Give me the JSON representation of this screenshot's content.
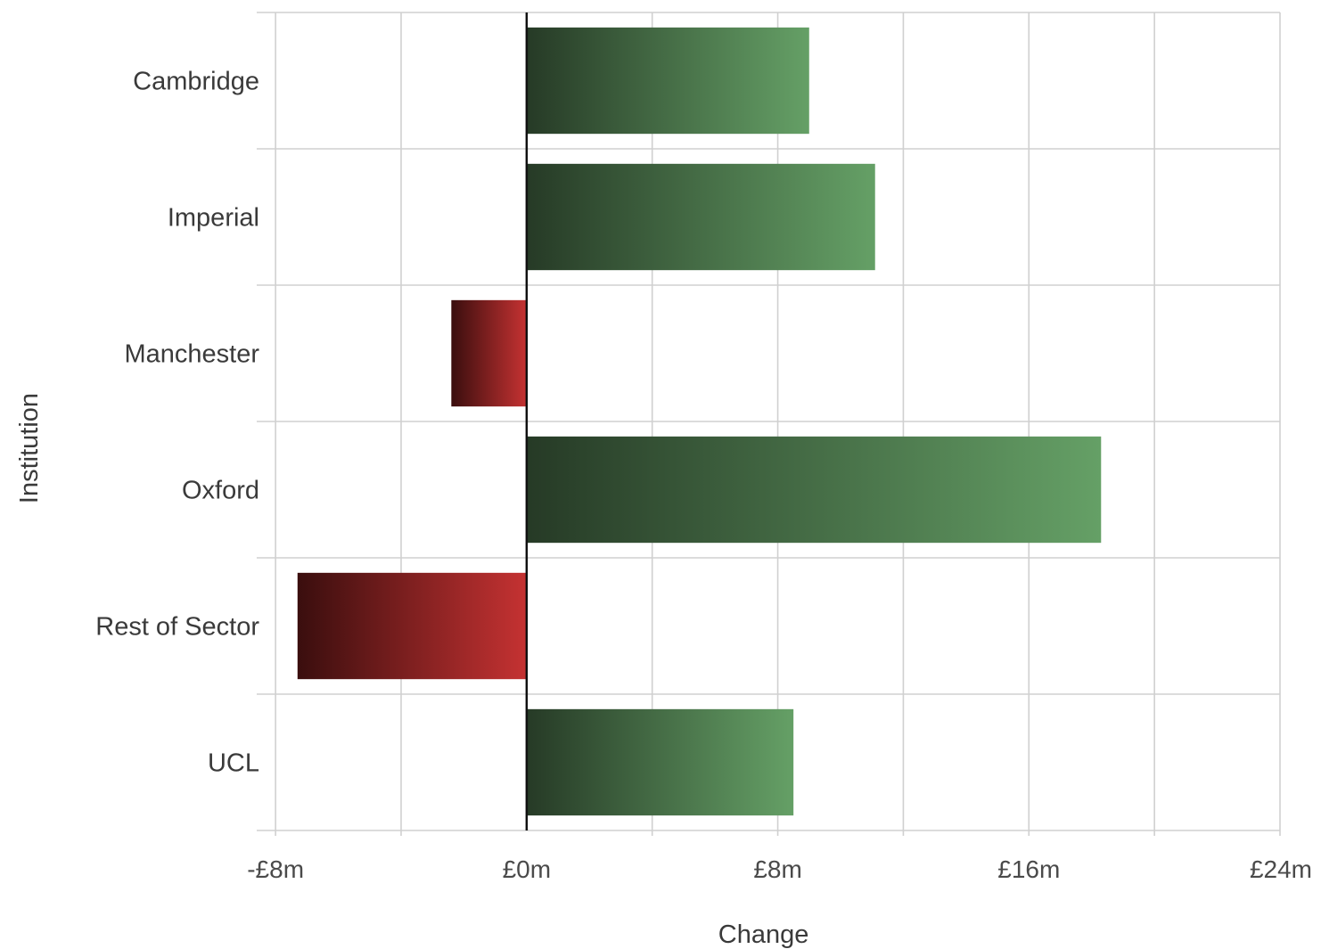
{
  "chart_data": {
    "type": "bar",
    "orientation": "horizontal",
    "categories": [
      "Cambridge",
      "Imperial",
      "Manchester",
      "Oxford",
      "Rest of Sector",
      "UCL"
    ],
    "values": [
      9.0,
      11.1,
      -2.4,
      18.3,
      -7.3,
      8.5
    ],
    "unit": "£m",
    "xlabel": "Change",
    "ylabel": "Institution",
    "xlim": [
      -8.6,
      24
    ],
    "x_ticks": [
      -8,
      0,
      8,
      16,
      24
    ],
    "x_tick_labels": [
      "-£8m",
      "£0m",
      "£8m",
      "£16m",
      "£24m"
    ],
    "grid": true,
    "colors": {
      "positive_dark": "#263a26",
      "positive_light": "#65a066",
      "negative_dark": "#3a0e0e",
      "negative_light": "#c53232",
      "grid": "#d0d0d0",
      "zero_line": "#111111"
    }
  }
}
